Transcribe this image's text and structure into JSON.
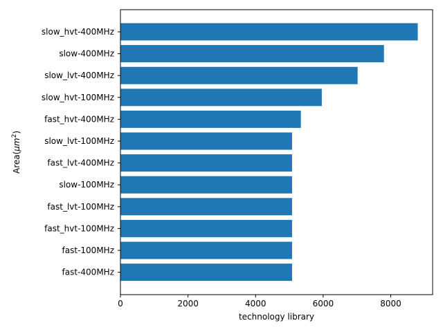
{
  "chart_data": {
    "type": "bar",
    "orientation": "horizontal",
    "xlabel": "technology library",
    "ylabel": "Area(μm²)",
    "ylabel_base": "Area(",
    "ylabel_unit": "μm",
    "ylabel_exp": "2",
    "ylabel_close": ")",
    "xlim": [
      0,
      9240
    ],
    "xticks": [
      0,
      2000,
      4000,
      6000,
      8000
    ],
    "xtick_labels": [
      "0",
      "2000",
      "4000",
      "6000",
      "8000"
    ],
    "grid": false,
    "bar_color": "#1f77b4",
    "categories": [
      "slow_hvt-400MHz",
      "slow-400MHz",
      "slow_lvt-400MHz",
      "slow_hvt-100MHz",
      "fast_hvt-400MHz",
      "slow_lvt-100MHz",
      "fast_lvt-400MHz",
      "slow-100MHz",
      "fast_lvt-100MHz",
      "fast_hvt-100MHz",
      "fast-100MHz",
      "fast-400MHz"
    ],
    "values": [
      8800,
      7800,
      7020,
      5960,
      5340,
      5080,
      5080,
      5080,
      5080,
      5080,
      5080,
      5080
    ]
  }
}
